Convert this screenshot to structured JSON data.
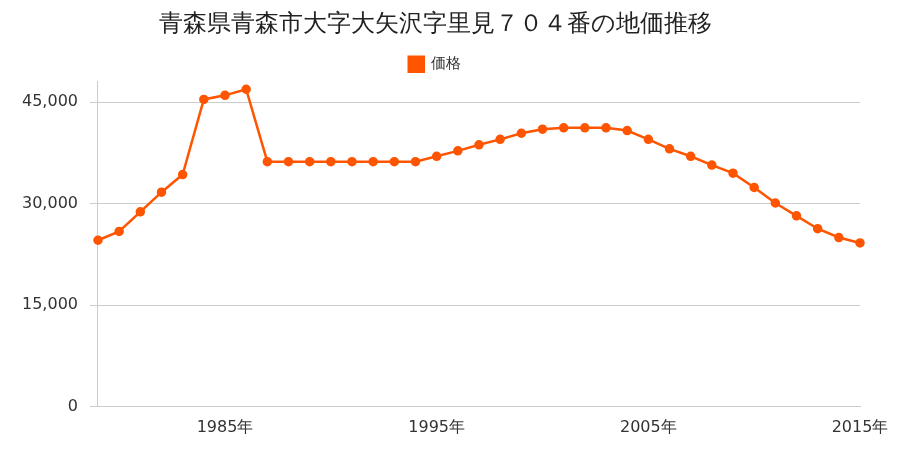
{
  "chart_data": {
    "type": "line",
    "title": "青森県青森市大字大矢沢字里見７０４番の地価推移",
    "categories": [
      null,
      null,
      null,
      null,
      null,
      null,
      "1985年",
      null,
      null,
      null,
      null,
      null,
      null,
      null,
      null,
      null,
      "1995年",
      null,
      null,
      null,
      null,
      null,
      null,
      null,
      null,
      null,
      "2005年",
      null,
      null,
      null,
      null,
      null,
      null,
      null,
      null,
      null,
      "2015年"
    ],
    "series": [
      {
        "name": "価格",
        "color": "#ff5500",
        "marker": "circle",
        "values": [
          24600,
          25900,
          28800,
          31700,
          34300,
          45400,
          46000,
          46900,
          36200,
          36200,
          36200,
          36200,
          36200,
          36200,
          36200,
          36200,
          37000,
          37800,
          38700,
          39500,
          40400,
          41000,
          41200,
          41200,
          41200,
          40800,
          39500,
          38100,
          37000,
          35700,
          34500,
          32400,
          30100,
          28200,
          26300,
          25000,
          24200
        ]
      }
    ],
    "ylim": [
      0,
      48000
    ],
    "yticks": [
      0,
      {
        "value": 15000,
        "label": "15,000"
      },
      {
        "value": 30000,
        "label": "30,000"
      },
      {
        "value": 45000,
        "label": "45,000"
      }
    ],
    "grid": true,
    "legend": "top"
  }
}
